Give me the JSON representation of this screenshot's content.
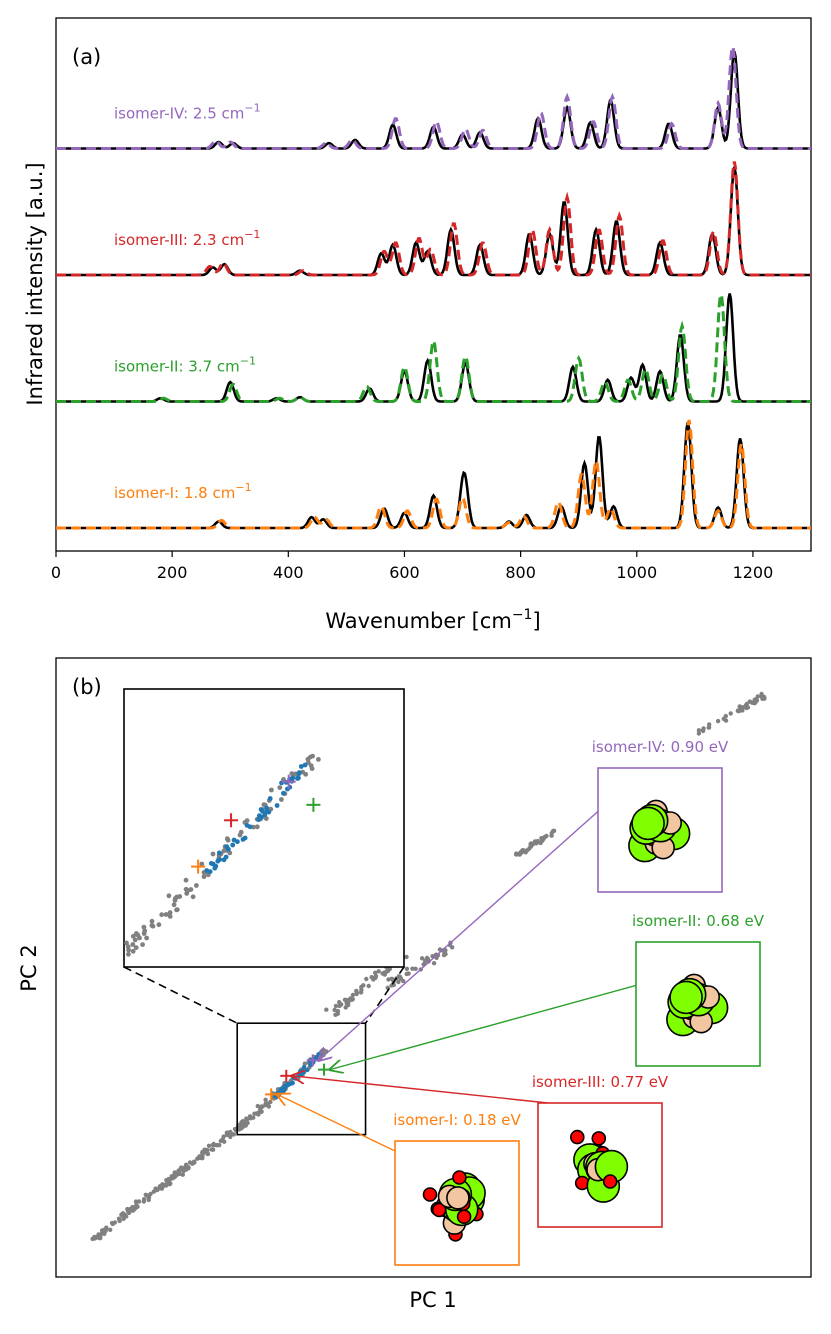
{
  "chart_data": [
    {
      "type": "line",
      "panel_label": "(a)",
      "xlabel": "Wavenumber [cm",
      "xlabel_sup": "−1",
      "xlabel_end": "]",
      "ylabel": "Infrared intensity [a.u.]",
      "xlim": [
        0,
        1300
      ],
      "xticks": [
        0,
        200,
        400,
        600,
        800,
        1000,
        1200
      ],
      "grid": false,
      "series_note_colors": {
        "reference": "#000000"
      },
      "series": [
        {
          "id": "isomer-IV",
          "label_text": "isomer-IV: 2.5 cm",
          "label_sup": "−1",
          "color": "#9467bd",
          "offset": 3,
          "peaks_ref": [
            [
              280,
              0.06
            ],
            [
              305,
              0.05
            ],
            [
              470,
              0.05
            ],
            [
              515,
              0.08
            ],
            [
              580,
              0.22
            ],
            [
              650,
              0.2
            ],
            [
              700,
              0.13
            ],
            [
              730,
              0.15
            ],
            [
              830,
              0.28
            ],
            [
              880,
              0.38
            ],
            [
              920,
              0.24
            ],
            [
              955,
              0.45
            ],
            [
              1055,
              0.23
            ],
            [
              1140,
              0.38
            ],
            [
              1168,
              0.9
            ]
          ],
          "peaks_pred": [
            [
              275,
              0.07
            ],
            [
              300,
              0.06
            ],
            [
              465,
              0.05
            ],
            [
              510,
              0.08
            ],
            [
              585,
              0.28
            ],
            [
              655,
              0.25
            ],
            [
              705,
              0.18
            ],
            [
              735,
              0.17
            ],
            [
              835,
              0.33
            ],
            [
              880,
              0.48
            ],
            [
              925,
              0.25
            ],
            [
              958,
              0.48
            ],
            [
              1060,
              0.23
            ],
            [
              1140,
              0.42
            ],
            [
              1165,
              0.95
            ]
          ]
        },
        {
          "id": "isomer-III",
          "label_text": "isomer-III: 2.3 cm",
          "label_sup": "−1",
          "color": "#d62728",
          "offset": 2,
          "peaks_ref": [
            [
              270,
              0.07
            ],
            [
              290,
              0.1
            ],
            [
              420,
              0.04
            ],
            [
              560,
              0.2
            ],
            [
              580,
              0.28
            ],
            [
              620,
              0.3
            ],
            [
              640,
              0.22
            ],
            [
              680,
              0.42
            ],
            [
              730,
              0.28
            ],
            [
              815,
              0.38
            ],
            [
              850,
              0.38
            ],
            [
              875,
              0.68
            ],
            [
              930,
              0.42
            ],
            [
              965,
              0.5
            ],
            [
              1040,
              0.3
            ],
            [
              1130,
              0.38
            ],
            [
              1168,
              1.0
            ]
          ],
          "peaks_pred": [
            [
              265,
              0.08
            ],
            [
              288,
              0.11
            ],
            [
              425,
              0.04
            ],
            [
              565,
              0.22
            ],
            [
              585,
              0.3
            ],
            [
              625,
              0.34
            ],
            [
              645,
              0.24
            ],
            [
              685,
              0.48
            ],
            [
              735,
              0.3
            ],
            [
              820,
              0.42
            ],
            [
              850,
              0.42
            ],
            [
              880,
              0.72
            ],
            [
              935,
              0.42
            ],
            [
              970,
              0.55
            ],
            [
              1045,
              0.32
            ],
            [
              1132,
              0.4
            ],
            [
              1168,
              1.05
            ]
          ]
        },
        {
          "id": "isomer-II",
          "label_text": "isomer-II: 3.7 cm",
          "label_sup": "−1",
          "color": "#2ca02c",
          "offset": 1,
          "peaks_ref": [
            [
              180,
              0.03
            ],
            [
              300,
              0.18
            ],
            [
              380,
              0.03
            ],
            [
              420,
              0.04
            ],
            [
              540,
              0.12
            ],
            [
              600,
              0.28
            ],
            [
              640,
              0.38
            ],
            [
              705,
              0.36
            ],
            [
              890,
              0.32
            ],
            [
              950,
              0.2
            ],
            [
              990,
              0.22
            ],
            [
              1010,
              0.34
            ],
            [
              1040,
              0.28
            ],
            [
              1075,
              0.62
            ],
            [
              1160,
              1.0
            ]
          ],
          "peaks_pred": [
            [
              185,
              0.03
            ],
            [
              305,
              0.16
            ],
            [
              385,
              0.03
            ],
            [
              420,
              0.04
            ],
            [
              535,
              0.14
            ],
            [
              600,
              0.32
            ],
            [
              650,
              0.56
            ],
            [
              705,
              0.42
            ],
            [
              900,
              0.4
            ],
            [
              945,
              0.18
            ],
            [
              985,
              0.2
            ],
            [
              1015,
              0.3
            ],
            [
              1045,
              0.25
            ],
            [
              1078,
              0.7
            ],
            [
              1145,
              1.0
            ]
          ]
        },
        {
          "id": "isomer-I",
          "label_text": "isomer-I: 1.8 cm",
          "label_sup": "−1",
          "color": "#ff7f0e",
          "offset": 0,
          "peaks_ref": [
            [
              280,
              0.06
            ],
            [
              440,
              0.1
            ],
            [
              460,
              0.08
            ],
            [
              565,
              0.18
            ],
            [
              600,
              0.14
            ],
            [
              650,
              0.3
            ],
            [
              700,
              0.26
            ],
            [
              705,
              0.3
            ],
            [
              780,
              0.06
            ],
            [
              810,
              0.12
            ],
            [
              870,
              0.2
            ],
            [
              910,
              0.6
            ],
            [
              935,
              0.85
            ],
            [
              960,
              0.2
            ],
            [
              1088,
              0.98
            ],
            [
              1140,
              0.19
            ],
            [
              1178,
              0.83
            ]
          ],
          "peaks_pred": [
            [
              285,
              0.07
            ],
            [
              445,
              0.1
            ],
            [
              465,
              0.08
            ],
            [
              560,
              0.2
            ],
            [
              605,
              0.16
            ],
            [
              655,
              0.27
            ],
            [
              700,
              0.28
            ],
            [
              780,
              0.05
            ],
            [
              805,
              0.11
            ],
            [
              865,
              0.24
            ],
            [
              905,
              0.5
            ],
            [
              930,
              0.62
            ],
            [
              955,
              0.18
            ],
            [
              1090,
              1.0
            ],
            [
              1140,
              0.16
            ],
            [
              1180,
              0.78
            ]
          ]
        }
      ]
    },
    {
      "type": "scatter",
      "panel_label": "(b)",
      "xlabel": "PC 1",
      "ylabel": "PC 2",
      "xlim": [
        0,
        10
      ],
      "ylim": [
        0,
        10
      ],
      "grid": false,
      "colors": {
        "all": "#808080",
        "highlight": "#1f77b4"
      },
      "clusters_all": [
        {
          "start": [
            0.5,
            0.6
          ],
          "end": [
            2.6,
            2.6
          ],
          "n": 170,
          "spread": 0.07
        },
        {
          "start": [
            2.6,
            2.6
          ],
          "end": [
            3.6,
            3.7
          ],
          "n": 70,
          "spread": 0.07
        },
        {
          "start": [
            3.6,
            4.2
          ],
          "end": [
            4.6,
            5.2
          ],
          "n": 55,
          "spread": 0.1
        },
        {
          "start": [
            4.4,
            4.7
          ],
          "end": [
            5.3,
            5.4
          ],
          "n": 40,
          "spread": 0.12
        },
        {
          "start": [
            6.1,
            6.8
          ],
          "end": [
            6.6,
            7.2
          ],
          "n": 35,
          "spread": 0.06
        },
        {
          "start": [
            8.5,
            8.8
          ],
          "end": [
            9.4,
            9.4
          ],
          "n": 40,
          "spread": 0.06
        }
      ],
      "clusters_highlight": [
        {
          "start": [
            2.9,
            2.9
          ],
          "end": [
            3.5,
            3.6
          ],
          "n": 45,
          "spread": 0.05
        }
      ],
      "isomers": [
        {
          "id": "isomer-I",
          "label": "isomer-I: 0.18 eV",
          "color": "#ff7f0e",
          "point": [
            2.85,
            2.95
          ]
        },
        {
          "id": "isomer-II",
          "label": "isomer-II: 0.68 eV",
          "color": "#2ca02c",
          "point": [
            3.55,
            3.35
          ]
        },
        {
          "id": "isomer-III",
          "label": "isomer-III: 0.77 eV",
          "color": "#d62728",
          "point": [
            3.05,
            3.25
          ]
        },
        {
          "id": "isomer-IV",
          "label": "isomer-IV: 0.90 eV",
          "color": "#9467bd",
          "point": [
            3.4,
            3.5
          ]
        }
      ],
      "atom_colors": {
        "large": "#80ff00",
        "medium": "#f2c6a1",
        "small": "#ff0000"
      }
    }
  ]
}
